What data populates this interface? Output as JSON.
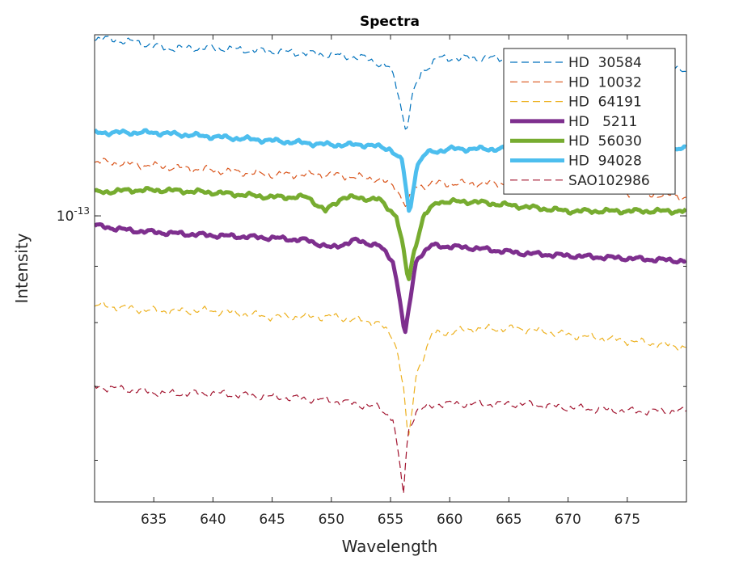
{
  "chart_data": {
    "type": "line",
    "title": "Spectra",
    "xlabel": "Wavelength",
    "ylabel": "Intensity",
    "y_scale": "log",
    "xlim": [
      630,
      680
    ],
    "ylim": [
      5.5e-14,
      1.46e-13
    ],
    "x_ticks": [
      635,
      640,
      645,
      650,
      655,
      660,
      665,
      670,
      675
    ],
    "y_tick_labels": [
      {
        "base": "10",
        "exponent": "-13",
        "value": 1e-13
      }
    ],
    "grid": false,
    "legend_position": "top-right",
    "series": [
      {
        "name": "HD  30584",
        "color": "#0072BD",
        "style": "dashed",
        "width": "thin",
        "x": [
          630,
          633,
          636,
          640,
          645,
          650,
          653,
          655,
          655.7,
          656.3,
          656.9,
          657.6,
          659,
          662,
          666,
          670,
          675,
          680
        ],
        "y": [
          1.45e-13,
          1.44e-13,
          1.42e-13,
          1.42e-13,
          1.41e-13,
          1.4e-13,
          1.39e-13,
          1.36e-13,
          1.29e-13,
          1.19e-13,
          1.29e-13,
          1.35e-13,
          1.39e-13,
          1.39e-13,
          1.39e-13,
          1.38e-13,
          1.37e-13,
          1.36e-13
        ]
      },
      {
        "name": "HD  10032",
        "color": "#D95319",
        "style": "dashed",
        "width": "thin",
        "x": [
          630,
          635,
          640,
          645,
          650,
          654,
          655.5,
          656.3,
          657,
          658.5,
          662,
          666,
          670,
          675,
          680
        ],
        "y": [
          1.12e-13,
          1.11e-13,
          1.1e-13,
          1.09e-13,
          1.09e-13,
          1.08e-13,
          1.06e-13,
          1.02e-13,
          1.06e-13,
          1.07e-13,
          1.07e-13,
          1.07e-13,
          1.06e-13,
          1.05e-13,
          1.04e-13
        ]
      },
      {
        "name": "HD  64191",
        "color": "#EDB120",
        "style": "dashed",
        "width": "thin",
        "x": [
          630,
          635,
          640,
          645,
          650,
          654,
          655.4,
          656.1,
          656.5,
          657.2,
          658.5,
          662,
          666,
          670,
          675,
          680
        ],
        "y": [
          8.3e-14,
          8.2e-14,
          8.2e-14,
          8.1e-14,
          8.1e-14,
          8e-14,
          7.7e-14,
          7e-14,
          6.2e-14,
          7.2e-14,
          7.8e-14,
          7.9e-14,
          7.9e-14,
          7.8e-14,
          7.7e-14,
          7.6e-14
        ]
      },
      {
        "name": "HD   5211",
        "color": "#7E2F8E",
        "style": "solid",
        "width": "thick",
        "x": [
          630,
          633,
          636,
          640,
          645,
          648,
          650,
          652,
          654,
          655.2,
          655.8,
          656.2,
          656.6,
          657.2,
          658.5,
          662,
          666,
          670,
          675,
          680
        ],
        "y": [
          9.8e-14,
          9.7e-14,
          9.65e-14,
          9.6e-14,
          9.55e-14,
          9.5e-14,
          9.35e-14,
          9.5e-14,
          9.4e-14,
          9.1e-14,
          8.4e-14,
          7.75e-14,
          8.3e-14,
          9.15e-14,
          9.4e-14,
          9.35e-14,
          9.25e-14,
          9.2e-14,
          9.15e-14,
          9.1e-14
        ]
      },
      {
        "name": "HD  56030",
        "color": "#77AC30",
        "style": "solid",
        "width": "thick",
        "x": [
          630,
          633,
          636,
          640,
          645,
          648,
          649.5,
          651,
          654,
          655.5,
          656.1,
          656.5,
          657,
          657.8,
          659,
          662,
          666,
          670,
          675,
          680
        ],
        "y": [
          1.05e-13,
          1.055e-13,
          1.055e-13,
          1.05e-13,
          1.04e-13,
          1.04e-13,
          1.01e-13,
          1.04e-13,
          1.035e-13,
          1e-13,
          9.3e-14,
          8.7e-14,
          9.3e-14,
          1e-13,
          1.03e-13,
          1.03e-13,
          1.02e-13,
          1.01e-13,
          1.01e-13,
          1.01e-13
        ]
      },
      {
        "name": "HD  94028",
        "color": "#4DBEEE",
        "style": "solid",
        "width": "thick",
        "x": [
          630,
          635,
          640,
          645,
          650,
          653,
          655,
          656,
          656.6,
          657.2,
          658,
          660,
          664,
          668,
          672,
          676,
          680
        ],
        "y": [
          1.19e-13,
          1.19e-13,
          1.18e-13,
          1.17e-13,
          1.16e-13,
          1.16e-13,
          1.15e-13,
          1.12e-13,
          1e-13,
          1.11e-13,
          1.14e-13,
          1.15e-13,
          1.15e-13,
          1.15e-13,
          1.15e-13,
          1.15e-13,
          1.15e-13
        ]
      },
      {
        "name": "SAO102986",
        "color": "#A2142F",
        "style": "dashed",
        "width": "thin",
        "x": [
          630,
          633,
          636,
          640,
          645,
          650,
          654,
          655.2,
          655.9,
          656.1,
          656.5,
          657.2,
          659,
          662,
          666,
          670,
          675,
          680
        ],
        "y": [
          7e-14,
          6.95e-14,
          6.9e-14,
          6.9e-14,
          6.85e-14,
          6.8e-14,
          6.7e-14,
          6.55e-14,
          5.8e-14,
          5.6e-14,
          6.4e-14,
          6.65e-14,
          6.75e-14,
          6.75e-14,
          6.75e-14,
          6.7e-14,
          6.65e-14,
          6.65e-14
        ]
      }
    ]
  }
}
